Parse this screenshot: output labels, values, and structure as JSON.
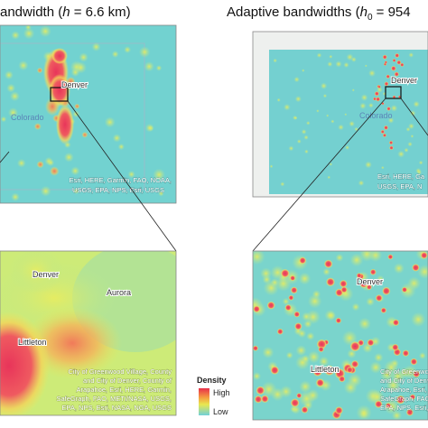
{
  "panels": {
    "fixed": {
      "title": [
        "andwidth (",
        "h",
        " = 6.6 km)"
      ],
      "overview": {
        "labels": [
          "Denver",
          "Colorado"
        ],
        "attribution": [
          "Esri, HERE, Garmin, FAO, NOAA,",
          "USGS, EPA, NPS, Esri, USGS"
        ]
      },
      "detail": {
        "labels": [
          "Denver",
          "Aurora",
          "Littleton"
        ],
        "attribution": [
          "City of Greenwood Village, County",
          "and City of Denver, County of",
          "Arapahoe, Esri, HERE, Garmin,",
          "SafeGraph, FAO, METI/NASA, USGS,",
          "EPA, NPS, Esri, NASA, NGA, USGS"
        ]
      }
    },
    "adaptive": {
      "title": [
        "Adaptive bandwidths (",
        "h",
        "0",
        " = 954"
      ],
      "overview": {
        "labels": [
          "Denver",
          "Colorado"
        ],
        "attribution": [
          "Esri, HERE, Ga",
          "USGS, EPA, N"
        ]
      },
      "detail": {
        "labels": [
          "Denver",
          "Littleton"
        ],
        "attribution": [
          "City of Greenwood",
          "and City of Denver",
          "Arapahoe, Esri, HE",
          "SafeGraph, FAO, M",
          "EPA, NPS, Esri, NA"
        ]
      }
    }
  },
  "legend": {
    "title": "Density",
    "high": "High",
    "low": "Low"
  }
}
